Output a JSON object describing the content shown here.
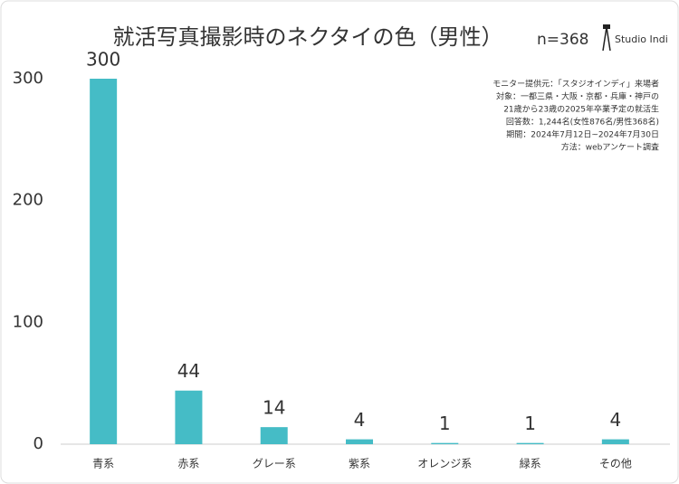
{
  "chart_data": {
    "type": "bar",
    "title": "就活写真撮影時のネクタイの色（男性）",
    "sample_size": "n=368",
    "brand": "Studio Indi",
    "notes": [
      "モニター提供元：「スタジオインディ」来場者",
      "対象：一都三県・大阪・京都・兵庫・神戸の",
      "21歳から23歳の2025年卒業予定の就活生",
      "回答数：1,244名(女性876名/男性368名)",
      "期間：2024年7月12日~2024年7月30日",
      "方法：webアンケート調査"
    ],
    "categories": [
      "青系",
      "赤系",
      "グレー系",
      "紫系",
      "オレンジ系",
      "緑系",
      "その他"
    ],
    "values": [
      300,
      44,
      14,
      4,
      1,
      1,
      4
    ],
    "color": "#45bcc6",
    "ylim": [
      0,
      300
    ],
    "yticks": [
      0,
      100,
      200,
      300
    ],
    "grid": false
  }
}
